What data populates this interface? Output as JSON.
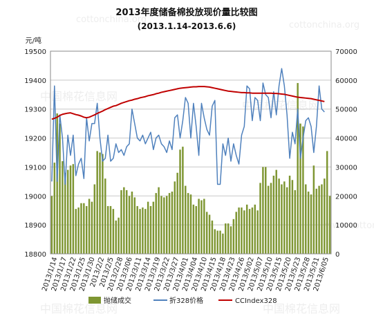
{
  "chart_data": {
    "type": "bar",
    "title": "2013年度储备棉投放现价量比较图",
    "subtitle": "(2013.1.14-2013.6.6)",
    "y_left_unit": "元/吨",
    "y_left_range": [
      18800,
      19500
    ],
    "y_left_ticks": [
      "18800",
      "18900",
      "19000",
      "19100",
      "19200",
      "19300",
      "19400",
      "19500"
    ],
    "y_right_range": [
      0,
      70000
    ],
    "y_right_ticks": [
      "0",
      "10000",
      "20000",
      "30000",
      "40000",
      "50000",
      "60000",
      "70000"
    ],
    "x_tick_labels": [
      "2013/1/14",
      "2013/1/17",
      "2013/1/22",
      "2013/1/25",
      "2013/1/30",
      "2013/2/2",
      "2013/2/5",
      "2013/2/28",
      "2013/3/06",
      "2013/3/11",
      "2013/3/14",
      "2013/3/19",
      "2013/3/22",
      "2013/3/27",
      "2013/4/01",
      "2013/4/04",
      "2013/4/10",
      "2013/4/15",
      "2013/4/18",
      "2013/4/23",
      "2013/4/26",
      "2013/5/02",
      "2013/5/07",
      "2013/5/10",
      "2013/5/15",
      "2013/5/20",
      "2013/5/23",
      "2013/5/28",
      "2013/5/31",
      "2013/6/05"
    ],
    "grid": true,
    "legend_position": "bottom",
    "series": [
      {
        "name": "抛储成交",
        "type": "bar",
        "axis": "right",
        "color": "#7e9632",
        "values": [
          20000,
          31500,
          48500,
          45000,
          32000,
          28000,
          29000,
          30500,
          31000,
          15500,
          16000,
          17500,
          17500,
          16500,
          19000,
          18000,
          24000,
          35500,
          35000,
          34500,
          26000,
          16500,
          16500,
          15500,
          11500,
          12500,
          22000,
          23000,
          22000,
          20000,
          21500,
          19500,
          16500,
          15500,
          16000,
          15500,
          18000,
          16500,
          18000,
          21000,
          23000,
          20000,
          19500,
          20000,
          21000,
          21500,
          25000,
          28000,
          36000,
          37000,
          23500,
          21000,
          20500,
          17000,
          16500,
          19000,
          18500,
          19000,
          14500,
          13500,
          11500,
          8500,
          8000,
          8000,
          7000,
          10500,
          10500,
          9500,
          12000,
          14500,
          16000,
          16000,
          15000,
          17000,
          15500,
          16000,
          17000,
          15000,
          24500,
          30000,
          30000,
          23500,
          24500,
          27000,
          29000,
          26000,
          24000,
          25000,
          23000,
          27000,
          25500,
          22000,
          59000,
          45000,
          44000,
          24000,
          21500,
          20500,
          30500,
          22500,
          23500,
          24000,
          26000,
          35500,
          20000
        ],
        "values_note_omitted": ""
      },
      {
        "name": "折328价格",
        "type": "line",
        "axis": "left",
        "color": "#4f81bd",
        "values": [
          19050,
          19380,
          19050,
          19280,
          19200,
          19040,
          19210,
          19140,
          19210,
          19070,
          19110,
          19130,
          19060,
          19270,
          19190,
          19250,
          19250,
          19320,
          19200,
          19120,
          19130,
          19210,
          19120,
          19130,
          19180,
          19150,
          19160,
          19140,
          19170,
          19180,
          19300,
          19250,
          19200,
          19190,
          19210,
          19180,
          19200,
          19220,
          19160,
          19200,
          19210,
          19180,
          19170,
          19150,
          19190,
          19160,
          19270,
          19280,
          19200,
          19260,
          19340,
          19320,
          19200,
          19320,
          19240,
          19140,
          19320,
          19270,
          19230,
          19210,
          19310,
          19330,
          19040,
          19040,
          19180,
          19140,
          19200,
          19120,
          19180,
          19140,
          19110,
          19210,
          19240,
          19380,
          19370,
          19260,
          19340,
          19330,
          19260,
          19390,
          19350,
          19340,
          19270,
          19360,
          19280,
          19380,
          19440,
          19380,
          19280,
          19130,
          19220,
          19180,
          19300,
          19130,
          19200,
          19260,
          19270,
          19240,
          19150,
          19240,
          19380,
          19300,
          19290
        ],
        "values_note_omitted": ""
      },
      {
        "name": "CCIndex328",
        "type": "line",
        "axis": "left",
        "color": "#c00000",
        "values": [
          19265,
          19268,
          19272,
          19278,
          19282,
          19284,
          19286,
          19287,
          19284,
          19281,
          19279,
          19276,
          19272,
          19270,
          19272,
          19276,
          19280,
          19285,
          19289,
          19293,
          19298,
          19302,
          19306,
          19310,
          19312,
          19316,
          19320,
          19323,
          19326,
          19329,
          19331,
          19334,
          19336,
          19339,
          19341,
          19343,
          19346,
          19348,
          19350,
          19353,
          19355,
          19358,
          19360,
          19362,
          19364,
          19366,
          19368,
          19370,
          19372,
          19373,
          19374,
          19375,
          19376,
          19377,
          19377,
          19378,
          19378,
          19378,
          19377,
          19376,
          19374,
          19372,
          19370,
          19368,
          19366,
          19364,
          19362,
          19361,
          19360,
          19359,
          19358,
          19357,
          19357,
          19356,
          19356,
          19355,
          19355,
          19355,
          19355,
          19355,
          19355,
          19355,
          19355,
          19354,
          19354,
          19353,
          19352,
          19351,
          19349,
          19347,
          19345,
          19343,
          19341,
          19340,
          19339,
          19338,
          19337,
          19336,
          19334,
          19332,
          19330,
          19328,
          19326
        ]
      }
    ]
  },
  "watermarks": [
    "cottonchina.org",
    "中国棉花信息网",
    "www.cottonchina.org"
  ]
}
